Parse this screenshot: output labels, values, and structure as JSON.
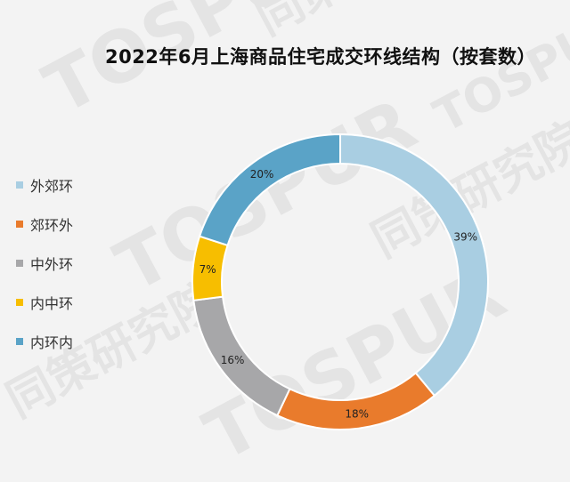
{
  "chart_data": {
    "type": "pie",
    "title": "2022年6月上海商品住宅成交环线结构（按套数）",
    "categories": [
      "外郊环",
      "郊环外",
      "中外环",
      "内中环",
      "内环内"
    ],
    "values": [
      39,
      18,
      16,
      7,
      20
    ],
    "labels": [
      "39%",
      "18%",
      "16%",
      "7%",
      "20%"
    ],
    "colors": [
      "#a9cee2",
      "#e97b2c",
      "#a7a7a9",
      "#f7be00",
      "#5aa3c7"
    ],
    "legend_position": "left",
    "donut": true
  },
  "watermark": {
    "text_latin": "TOSPUR",
    "text_cjk": "同策研究院"
  }
}
